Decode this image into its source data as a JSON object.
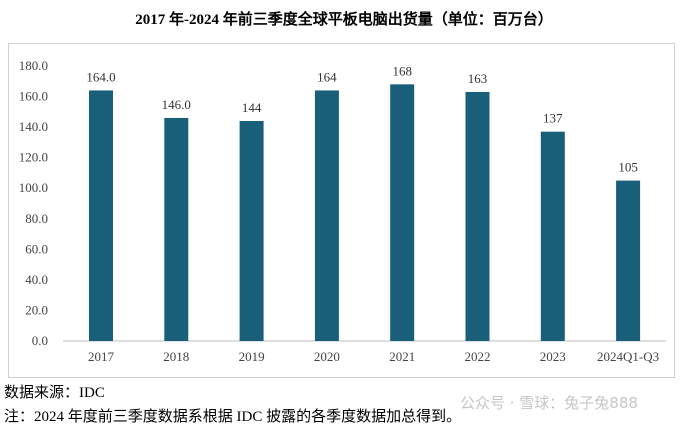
{
  "chart_data": {
    "type": "bar",
    "title": "2017 年-2024 年前三季度全球平板电脑出货量（单位：百万台）",
    "categories": [
      "2017",
      "2018",
      "2019",
      "2020",
      "2021",
      "2022",
      "2023",
      "2024Q1-Q3"
    ],
    "values": [
      164.0,
      146.0,
      144,
      164,
      168,
      163,
      137,
      105
    ],
    "data_labels": [
      "164.0",
      "146.0",
      "144",
      "164",
      "168",
      "163",
      "137",
      "105"
    ],
    "yticks": [
      "0.0",
      "20.0",
      "40.0",
      "60.0",
      "80.0",
      "100.0",
      "120.0",
      "140.0",
      "160.0",
      "180.0"
    ],
    "ylim": [
      0,
      180
    ],
    "xlabel": "",
    "ylabel": "",
    "grid": false,
    "bar_color": "#1a5f7a"
  },
  "source": "数据来源：IDC",
  "note": "注：2024 年度前三季度数据系根据 IDC 披露的各季度数据加总得到。",
  "watermark": "公众号 · 雪球：兔子兔888"
}
